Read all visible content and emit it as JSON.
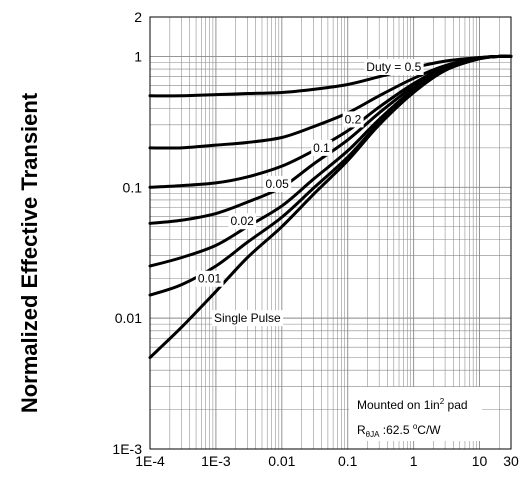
{
  "chart_data": {
    "type": "line",
    "ylabel": "Normalized Effective Transient",
    "xlabel": "",
    "xscale": "log",
    "yscale": "log",
    "xlim": [
      0.0001,
      30
    ],
    "ylim": [
      0.001,
      2
    ],
    "grid": true,
    "x_tick_labels": [
      {
        "value": 0.0001,
        "label": "1E-4"
      },
      {
        "value": 0.001,
        "label": "1E-3"
      },
      {
        "value": 0.01,
        "label": "0.01"
      },
      {
        "value": 0.1,
        "label": "0.1"
      },
      {
        "value": 1,
        "label": "1"
      },
      {
        "value": 10,
        "label": "10"
      },
      {
        "value": 30,
        "label": "30"
      }
    ],
    "y_tick_labels": [
      {
        "value": 0.001,
        "label": "1E-3"
      },
      {
        "value": 0.01,
        "label": "0.01"
      },
      {
        "value": 0.1,
        "label": "0.1"
      },
      {
        "value": 1,
        "label": "1"
      },
      {
        "value": 2,
        "label": "2"
      }
    ],
    "x": [
      0.0001,
      0.0003,
      0.001,
      0.003,
      0.01,
      0.03,
      0.1,
      0.3,
      1,
      3,
      10,
      20,
      30
    ],
    "series": [
      {
        "id": "d05",
        "values": [
          0.5,
          0.5,
          0.51,
          0.52,
          0.53,
          0.56,
          0.61,
          0.7,
          0.82,
          0.92,
          0.98,
          1.0,
          1.0
        ]
      },
      {
        "id": "d02",
        "values": [
          0.2,
          0.2,
          0.21,
          0.22,
          0.24,
          0.29,
          0.37,
          0.5,
          0.68,
          0.85,
          0.97,
          1.0,
          1.0
        ]
      },
      {
        "id": "d01",
        "values": [
          0.1,
          0.103,
          0.108,
          0.12,
          0.145,
          0.19,
          0.27,
          0.41,
          0.62,
          0.83,
          0.97,
          1.0,
          1.0
        ]
      },
      {
        "id": "d005",
        "values": [
          0.053,
          0.056,
          0.063,
          0.077,
          0.1,
          0.15,
          0.23,
          0.37,
          0.59,
          0.82,
          0.97,
          1.0,
          1.0
        ]
      },
      {
        "id": "d002",
        "values": [
          0.025,
          0.029,
          0.036,
          0.05,
          0.072,
          0.115,
          0.19,
          0.33,
          0.56,
          0.8,
          0.96,
          1.0,
          1.0
        ]
      },
      {
        "id": "d001",
        "values": [
          0.015,
          0.018,
          0.025,
          0.038,
          0.059,
          0.098,
          0.17,
          0.31,
          0.54,
          0.79,
          0.96,
          1.0,
          1.0
        ]
      },
      {
        "id": "single",
        "values": [
          0.005,
          0.0085,
          0.016,
          0.029,
          0.05,
          0.088,
          0.16,
          0.3,
          0.53,
          0.78,
          0.96,
          1.0,
          1.0
        ]
      }
    ],
    "annotations": [
      {
        "id": "duty-05",
        "text": "Duty =  0.5",
        "x": 0.5,
        "y": 0.83
      },
      {
        "id": "duty-02",
        "text": "0.2",
        "x": 0.12,
        "y": 0.33
      },
      {
        "id": "duty-01",
        "text": "0.1",
        "x": 0.04,
        "y": 0.2
      },
      {
        "id": "duty-005",
        "text": "0.05",
        "x": 0.0085,
        "y": 0.106
      },
      {
        "id": "duty-002",
        "text": "0.02",
        "x": 0.0025,
        "y": 0.055
      },
      {
        "id": "duty-001",
        "text": "0.01",
        "x": 0.0008,
        "y": 0.02
      },
      {
        "id": "single-pulse",
        "text": "Single Pulse",
        "x": 0.003,
        "y": 0.01
      }
    ],
    "note": {
      "line1_prefix": "Mounted on 1in",
      "line1_sup": "2",
      "line1_suffix": " pad",
      "line2_main": "R",
      "line2_sub": "θJA",
      "line2_value": " :62.5 ",
      "line2_sup": "o",
      "line2_unit": "C/W"
    }
  }
}
